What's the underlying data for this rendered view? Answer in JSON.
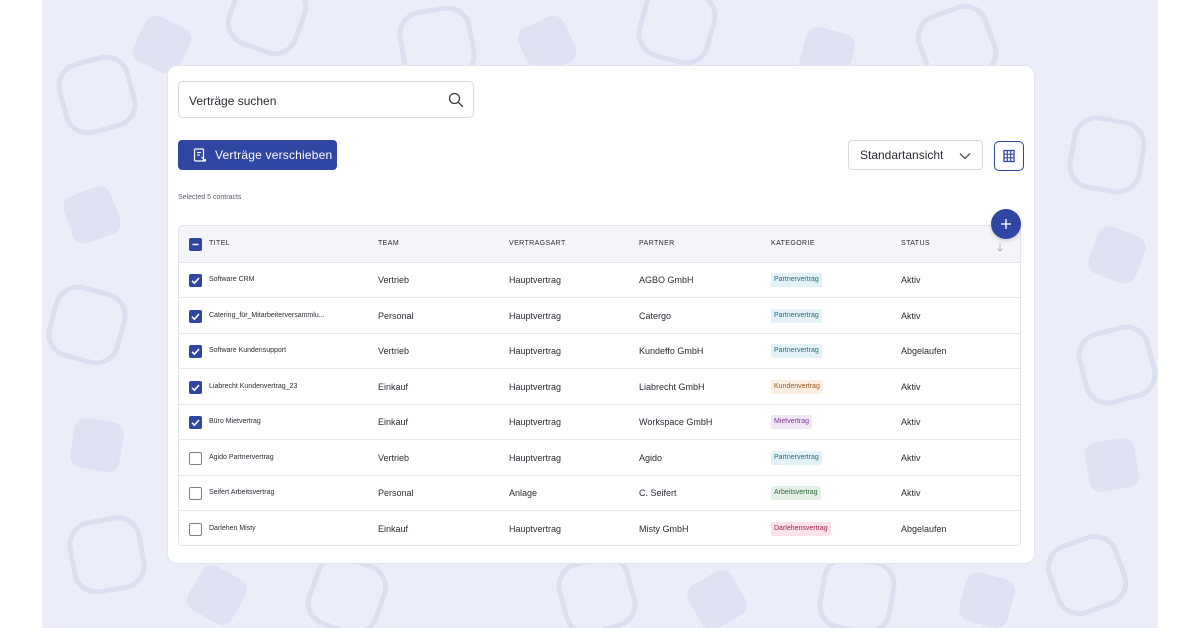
{
  "search": {
    "placeholder": "Verträge suchen",
    "icon": "search-icon"
  },
  "toolbar": {
    "move_label": "Verträge verschieben",
    "move_icon": "document-move-icon",
    "view_select_value": "Standartansicht",
    "columns_icon": "columns-grid-icon",
    "add_icon": "plus-icon"
  },
  "selection": {
    "text": "Selected 5 contracts"
  },
  "table": {
    "headers": {
      "title": "TITEL",
      "team": "TEAM",
      "type": "VERTRAGSART",
      "partner": "PARTNER",
      "category": "KATEGORIE",
      "status": "STATUS"
    },
    "rows": [
      {
        "checked": true,
        "title": "Software CRM",
        "team": "Vertrieb",
        "type": "Hauptvertrag",
        "partner": "AGBO GmbH",
        "category": "Partnervertrag",
        "status": "Aktiv"
      },
      {
        "checked": true,
        "title": "Catering_für_Mitarbeiterversammlu...",
        "team": "Personal",
        "type": "Hauptvertrag",
        "partner": "Catergo",
        "category": "Partnervertrag",
        "status": "Aktiv"
      },
      {
        "checked": true,
        "title": "Software Kundensupport",
        "team": "Vertrieb",
        "type": "Hauptvertrag",
        "partner": "Kundeffo GmbH",
        "category": "Partnervertrag",
        "status": "Abgelaufen"
      },
      {
        "checked": true,
        "title": "Liabrecht Kundenvertrag_23",
        "team": "Einkauf",
        "type": "Hauptvertrag",
        "partner": "Liabrecht GmbH",
        "category": "Kundenvertrag",
        "status": "Aktiv"
      },
      {
        "checked": true,
        "title": "Büro Mietvertrag",
        "team": "Einkauf",
        "type": "Hauptvertrag",
        "partner": "Workspace GmbH",
        "category": "Mietvertrag",
        "status": "Aktiv"
      },
      {
        "checked": false,
        "title": "Agido Partnervertrag",
        "team": "Vertrieb",
        "type": "Hauptvertrag",
        "partner": "Agido",
        "category": "Partnervertrag",
        "status": "Aktiv"
      },
      {
        "checked": false,
        "title": "Seifert Arbeitsvertrag",
        "team": "Personal",
        "type": "Anlage",
        "partner": "C. Seifert",
        "category": "Arbeitsvertrag",
        "status": "Aktiv"
      },
      {
        "checked": false,
        "title": "Darlehen Misty",
        "team": "Einkauf",
        "type": "Hauptvertrag",
        "partner": "Misty GmbH",
        "category": "Darlehensvertrag",
        "status": "Abgelaufen"
      }
    ]
  },
  "colors": {
    "accent": "#3046a3",
    "tags": {
      "Partnervertrag": {
        "bg": "#e3f2f6",
        "fg": "#1f6f86"
      },
      "Kundenvertrag": {
        "bg": "#fbefe2",
        "fg": "#9a5a1e"
      },
      "Mietvertrag": {
        "bg": "#f1e6f6",
        "fg": "#7b3a93"
      },
      "Arbeitsvertrag": {
        "bg": "#e4f0e6",
        "fg": "#2f6b3d"
      },
      "Darlehensvertrag": {
        "bg": "#fbe1ea",
        "fg": "#a5284f"
      }
    }
  }
}
